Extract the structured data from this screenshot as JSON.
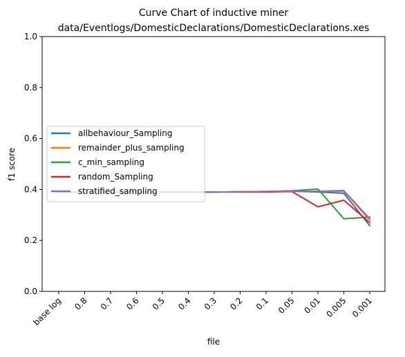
{
  "chart_data": {
    "type": "line",
    "title_line1": "Curve Chart of inductive miner",
    "title_line2": "data/Eventlogs/DomesticDeclarations/DomesticDeclarations.xes",
    "xlabel": "file",
    "ylabel": "f1 score",
    "ylim": [
      0,
      1
    ],
    "yticks": [
      "0.0",
      "0.2",
      "0.4",
      "0.6",
      "0.8",
      "1.0"
    ],
    "yticks_values": [
      0,
      0.2,
      0.4,
      0.6,
      0.8,
      1.0
    ],
    "categories": [
      "base log",
      "0.8",
      "0.7",
      "0.6",
      "0.5",
      "0.4",
      "0.3",
      "0.2",
      "0.1",
      "0.05",
      "0.01",
      "0.005",
      "0.001"
    ],
    "legend_position": "center-left",
    "grid": false,
    "series": [
      {
        "name": "allbehaviour_Sampling",
        "color": "#1f77b4",
        "values": [
          0.39,
          0.39,
          0.39,
          0.39,
          0.39,
          0.39,
          0.39,
          0.391,
          0.392,
          0.393,
          0.39,
          0.385,
          0.258
        ]
      },
      {
        "name": "remainder_plus_sampling",
        "color": "#ff7f0e",
        "values": [
          0.39,
          0.39,
          0.39,
          0.39,
          0.39,
          0.39,
          0.39,
          0.391,
          0.392,
          0.393,
          0.392,
          0.393,
          0.28
        ]
      },
      {
        "name": "c_min_sampling",
        "color": "#2ca02c",
        "values": [
          0.39,
          0.39,
          0.39,
          0.39,
          0.39,
          0.39,
          0.39,
          0.391,
          0.392,
          0.395,
          0.402,
          0.285,
          0.292
        ]
      },
      {
        "name": "random_Sampling",
        "color": "#d62728",
        "values": [
          0.39,
          0.39,
          0.39,
          0.39,
          0.39,
          0.39,
          0.39,
          0.39,
          0.39,
          0.392,
          0.332,
          0.358,
          0.27
        ]
      },
      {
        "name": "stratified_sampling",
        "color": "#9467bd",
        "values": [
          0.39,
          0.39,
          0.39,
          0.39,
          0.39,
          0.39,
          0.39,
          0.391,
          0.392,
          0.393,
          0.393,
          0.396,
          0.285
        ]
      }
    ]
  }
}
